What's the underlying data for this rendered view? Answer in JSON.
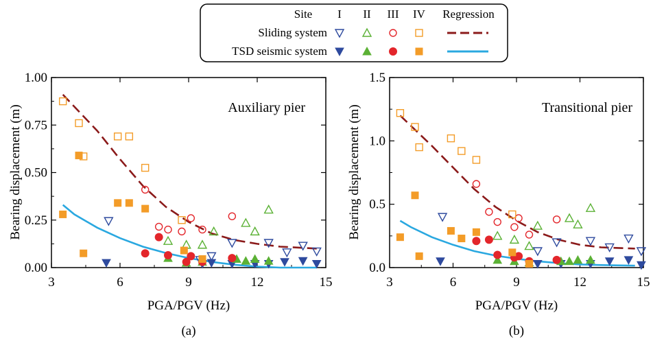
{
  "legend": {
    "site_label": "Site",
    "site_classes": [
      "I",
      "II",
      "III",
      "IV"
    ],
    "regression_label": "Regression",
    "rows": [
      "Sliding system",
      "TSD seismic system"
    ]
  },
  "colors": {
    "I": "#2e4a9e",
    "II": "#5bb135",
    "III": "#e3262b",
    "IV": "#f39c28",
    "reg_sliding": "#8b1a1a",
    "reg_tsd": "#2aa8e0"
  },
  "chart_data": [
    {
      "type": "scatter",
      "panel_label": "(a)",
      "title": "Auxiliary pier",
      "xlabel": "PGA/PGV (Hz)",
      "ylabel": "Bearing displacement (m)",
      "xlim": [
        3,
        15
      ],
      "ylim": [
        0,
        1.0
      ],
      "xticks": [
        3,
        6,
        9,
        12,
        15
      ],
      "yticks": [
        0.0,
        0.25,
        0.5,
        0.75,
        1.0
      ],
      "ytick_labels": [
        "0.00",
        "0.25",
        "0.50",
        "0.75",
        "1.00"
      ],
      "series": [
        {
          "name": "Sliding system - Site I",
          "system": "sliding",
          "site": "I",
          "x": [
            5.5,
            9.5,
            10.0,
            10.9,
            12.5,
            13.3,
            14.0,
            14.6
          ],
          "y": [
            0.245,
            0.04,
            0.06,
            0.13,
            0.13,
            0.08,
            0.115,
            0.085
          ]
        },
        {
          "name": "Sliding system - Site II",
          "system": "sliding",
          "site": "II",
          "x": [
            8.1,
            8.9,
            9.6,
            10.1,
            11.5,
            11.9,
            12.5
          ],
          "y": [
            0.14,
            0.12,
            0.12,
            0.19,
            0.235,
            0.19,
            0.305
          ]
        },
        {
          "name": "Sliding system - Site III",
          "system": "sliding",
          "site": "III",
          "x": [
            7.1,
            7.7,
            8.1,
            8.7,
            9.1,
            9.6,
            10.9
          ],
          "y": [
            0.41,
            0.215,
            0.2,
            0.19,
            0.26,
            0.2,
            0.27
          ]
        },
        {
          "name": "Sliding system - Site IV",
          "system": "sliding",
          "site": "IV",
          "x": [
            3.5,
            4.2,
            4.4,
            5.9,
            6.4,
            7.1,
            8.7
          ],
          "y": [
            0.875,
            0.76,
            0.585,
            0.69,
            0.69,
            0.525,
            0.25
          ]
        },
        {
          "name": "TSD seismic system - Site I",
          "system": "tsd",
          "site": "I",
          "x": [
            5.4,
            9.6,
            10.0,
            10.9,
            11.9,
            12.5,
            13.2,
            14.0,
            14.6
          ],
          "y": [
            0.025,
            0.02,
            0.025,
            0.02,
            0.02,
            0.02,
            0.03,
            0.035,
            0.02
          ]
        },
        {
          "name": "TSD seismic system - Site II",
          "system": "tsd",
          "site": "II",
          "x": [
            8.1,
            8.9,
            9.6,
            11.1,
            11.5,
            11.9,
            12.5
          ],
          "y": [
            0.05,
            0.025,
            0.03,
            0.045,
            0.035,
            0.045,
            0.035
          ]
        },
        {
          "name": "TSD seismic system - Site III",
          "system": "tsd",
          "site": "III",
          "x": [
            7.1,
            7.7,
            8.1,
            8.9,
            9.1,
            9.6,
            10.9
          ],
          "y": [
            0.075,
            0.16,
            0.065,
            0.03,
            0.06,
            0.03,
            0.05
          ]
        },
        {
          "name": "TSD seismic system - Site IV",
          "system": "tsd",
          "site": "IV",
          "x": [
            3.5,
            4.2,
            4.4,
            5.9,
            6.4,
            7.1,
            8.8,
            9.6
          ],
          "y": [
            0.28,
            0.59,
            0.075,
            0.34,
            0.34,
            0.31,
            0.09,
            0.045
          ]
        }
      ],
      "regression": {
        "sliding": {
          "x": [
            3.5,
            5,
            6,
            7,
            8,
            9,
            10,
            11,
            12,
            13,
            14.6
          ],
          "y": [
            0.91,
            0.72,
            0.57,
            0.43,
            0.32,
            0.24,
            0.18,
            0.145,
            0.125,
            0.11,
            0.1
          ]
        },
        "tsd": {
          "x": [
            3.5,
            4,
            5,
            6,
            7,
            8,
            9,
            10,
            11,
            12,
            13,
            14.6
          ],
          "y": [
            0.33,
            0.28,
            0.21,
            0.155,
            0.11,
            0.077,
            0.05,
            0.03,
            0.015,
            0.005,
            0.0,
            0.0
          ]
        }
      }
    },
    {
      "type": "scatter",
      "panel_label": "(b)",
      "title": "Transitional pier",
      "xlabel": "PGA/PGV (Hz)",
      "ylabel": "Bearing displacement (m)",
      "xlim": [
        3,
        15
      ],
      "ylim": [
        0,
        1.5
      ],
      "xticks": [
        3,
        6,
        9,
        12,
        15
      ],
      "yticks": [
        0.0,
        0.5,
        1.0,
        1.5
      ],
      "ytick_labels": [
        "0.0",
        "0.5",
        "1.0",
        "1.5"
      ],
      "series": [
        {
          "name": "Sliding system - Site I",
          "system": "sliding",
          "site": "I",
          "x": [
            5.5,
            10.0,
            10.9,
            12.5,
            13.4,
            14.3,
            14.9
          ],
          "y": [
            0.4,
            0.13,
            0.2,
            0.21,
            0.16,
            0.23,
            0.13
          ]
        },
        {
          "name": "Sliding system - Site II",
          "system": "sliding",
          "site": "II",
          "x": [
            8.1,
            8.9,
            9.6,
            10.0,
            11.5,
            11.9,
            12.5
          ],
          "y": [
            0.25,
            0.22,
            0.17,
            0.33,
            0.39,
            0.34,
            0.47
          ]
        },
        {
          "name": "Sliding system - Site III",
          "system": "sliding",
          "site": "III",
          "x": [
            7.1,
            7.7,
            8.1,
            8.9,
            9.1,
            9.6,
            10.9
          ],
          "y": [
            0.66,
            0.44,
            0.36,
            0.32,
            0.39,
            0.26,
            0.38
          ]
        },
        {
          "name": "Sliding system - Site IV",
          "system": "sliding",
          "site": "IV",
          "x": [
            3.5,
            4.2,
            4.4,
            5.9,
            6.4,
            7.1,
            8.8
          ],
          "y": [
            1.22,
            1.11,
            0.95,
            1.02,
            0.92,
            0.85,
            0.42
          ]
        },
        {
          "name": "TSD seismic system - Site I",
          "system": "tsd",
          "site": "I",
          "x": [
            5.4,
            10.0,
            11.1,
            12.5,
            13.4,
            14.3,
            14.9
          ],
          "y": [
            0.05,
            0.03,
            0.03,
            0.03,
            0.05,
            0.06,
            0.02
          ]
        },
        {
          "name": "TSD seismic system - Site II",
          "system": "tsd",
          "site": "II",
          "x": [
            8.1,
            8.9,
            9.6,
            11.1,
            11.5,
            11.9,
            12.5
          ],
          "y": [
            0.06,
            0.05,
            0.04,
            0.05,
            0.05,
            0.06,
            0.06
          ]
        },
        {
          "name": "TSD seismic system - Site III",
          "system": "tsd",
          "site": "III",
          "x": [
            7.1,
            7.7,
            8.1,
            8.9,
            9.1,
            9.6,
            10.9
          ],
          "y": [
            0.21,
            0.22,
            0.1,
            0.08,
            0.09,
            0.05,
            0.06
          ]
        },
        {
          "name": "TSD seismic system - Site IV",
          "system": "tsd",
          "site": "IV",
          "x": [
            3.5,
            4.2,
            4.4,
            5.9,
            6.4,
            7.1,
            8.8,
            9.6
          ],
          "y": [
            0.24,
            0.57,
            0.09,
            0.29,
            0.23,
            0.28,
            0.12,
            0.03
          ]
        }
      ],
      "regression": {
        "sliding": {
          "x": [
            3.5,
            5,
            6,
            7,
            8,
            9,
            10,
            11,
            12,
            13,
            14.6
          ],
          "y": [
            1.2,
            0.96,
            0.79,
            0.62,
            0.48,
            0.37,
            0.28,
            0.22,
            0.18,
            0.16,
            0.15
          ]
        },
        "tsd": {
          "x": [
            3.5,
            4,
            5,
            6,
            7,
            8,
            9,
            10,
            11,
            12,
            13,
            14.6
          ],
          "y": [
            0.37,
            0.32,
            0.24,
            0.18,
            0.13,
            0.095,
            0.07,
            0.05,
            0.035,
            0.025,
            0.02,
            0.015
          ]
        }
      }
    }
  ]
}
